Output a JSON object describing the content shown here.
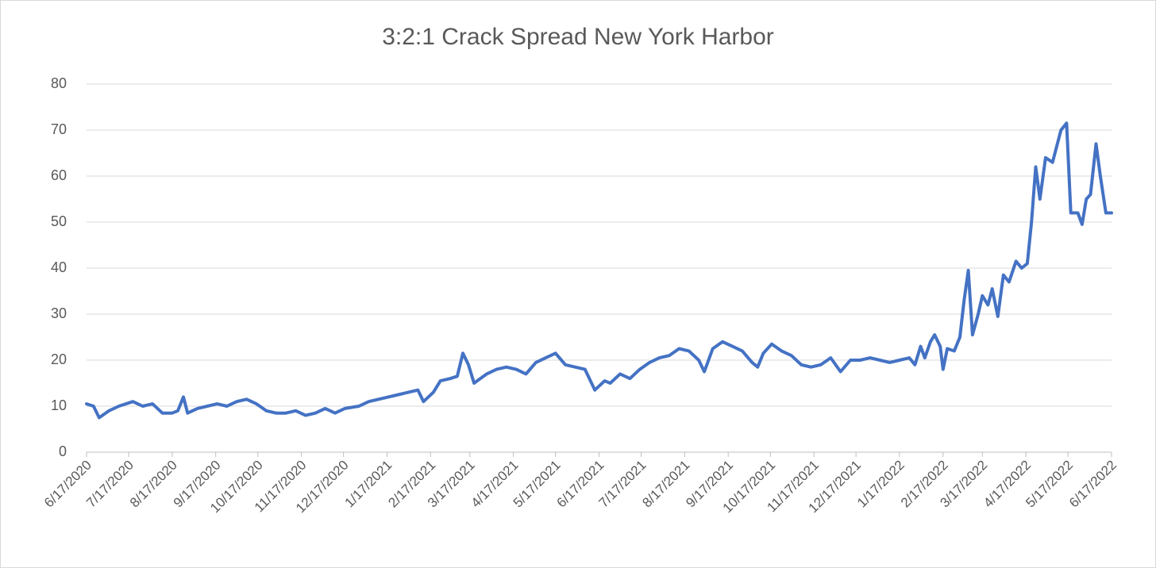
{
  "chart_data": {
    "type": "line",
    "title": "3:2:1 Crack Spread New York Harbor",
    "x": [
      "6/17/2020",
      "6/22/2020",
      "6/26/2020",
      "7/3/2020",
      "7/10/2020",
      "7/20/2020",
      "7/27/2020",
      "8/3/2020",
      "8/10/2020",
      "8/17/2020",
      "8/21/2020",
      "8/25/2020",
      "8/28/2020",
      "9/4/2020",
      "9/11/2020",
      "9/18/2020",
      "9/25/2020",
      "10/2/2020",
      "10/9/2020",
      "10/16/2020",
      "10/23/2020",
      "10/30/2020",
      "11/6/2020",
      "11/13/2020",
      "11/20/2020",
      "11/27/2020",
      "12/4/2020",
      "12/11/2020",
      "12/18/2020",
      "12/28/2020",
      "1/4/2021",
      "1/11/2021",
      "1/18/2021",
      "1/25/2021",
      "2/1/2021",
      "2/8/2021",
      "2/12/2021",
      "2/19/2021",
      "2/24/2021",
      "3/3/2021",
      "3/8/2021",
      "3/12/2021",
      "3/16/2021",
      "3/20/2021",
      "3/29/2021",
      "4/5/2021",
      "4/12/2021",
      "4/19/2021",
      "4/26/2021",
      "5/3/2021",
      "5/10/2021",
      "5/17/2021",
      "5/24/2021",
      "5/31/2021",
      "6/7/2021",
      "6/14/2021",
      "6/21/2021",
      "6/25/2021",
      "7/2/2021",
      "7/9/2021",
      "7/16/2021",
      "7/23/2021",
      "7/30/2021",
      "8/6/2021",
      "8/13/2021",
      "8/20/2021",
      "8/27/2021",
      "8/31/2021",
      "9/6/2021",
      "9/13/2021",
      "9/20/2021",
      "9/27/2021",
      "10/4/2021",
      "10/8/2021",
      "10/12/2021",
      "10/18/2021",
      "10/25/2021",
      "11/1/2021",
      "11/8/2021",
      "11/15/2021",
      "11/22/2021",
      "11/29/2021",
      "12/6/2021",
      "12/13/2021",
      "12/20/2021",
      "12/27/2021",
      "1/3/2022",
      "1/10/2022",
      "1/17/2022",
      "1/24/2022",
      "1/28/2022",
      "2/1/2022",
      "2/4/2022",
      "2/8/2022",
      "2/11/2022",
      "2/15/2022",
      "2/17/2022",
      "2/20/2022",
      "2/25/2022",
      "3/1/2022",
      "3/4/2022",
      "3/7/2022",
      "3/10/2022",
      "3/14/2022",
      "3/17/2022",
      "3/21/2022",
      "3/24/2022",
      "3/28/2022",
      "4/1/2022",
      "4/5/2022",
      "4/10/2022",
      "4/14/2022",
      "4/18/2022",
      "4/21/2022",
      "4/24/2022",
      "4/27/2022",
      "5/1/2022",
      "5/6/2022",
      "5/12/2022",
      "5/16/2022",
      "5/19/2022",
      "5/24/2022",
      "5/27/2022",
      "5/30/2022",
      "6/2/2022",
      "6/6/2022",
      "6/9/2022",
      "6/13/2022",
      "6/17/2022"
    ],
    "series": [
      {
        "name": "3:2:1 Crack Spread New York Harbor",
        "color": "#4472c4",
        "values": [
          10.5,
          10,
          7.5,
          9,
          10,
          11,
          10,
          10.5,
          8.5,
          8.5,
          9,
          12,
          8.5,
          9.5,
          10,
          10.5,
          10,
          11,
          11.5,
          10.5,
          9,
          8.5,
          8.5,
          9,
          8,
          8.5,
          9.5,
          8.5,
          9.5,
          10,
          11,
          11.5,
          12,
          12.5,
          13,
          13.5,
          11,
          13,
          15.5,
          16,
          16.5,
          21.5,
          19,
          15,
          17,
          18,
          18.5,
          18,
          17,
          19.5,
          20.5,
          21.5,
          19,
          18.5,
          18,
          13.5,
          15.5,
          15,
          17,
          16,
          18,
          19.5,
          20.5,
          21,
          22.5,
          22,
          20,
          17.5,
          22.5,
          24,
          23,
          22,
          19.5,
          18.5,
          21.5,
          23.5,
          22,
          21,
          19,
          18.5,
          19,
          20.5,
          17.5,
          20,
          20,
          20.5,
          20,
          19.5,
          20,
          20.5,
          19,
          23,
          20.5,
          24,
          25.5,
          23,
          18,
          22.5,
          22,
          25,
          33,
          39.5,
          25.5,
          30,
          34,
          32,
          35.5,
          29.5,
          38.5,
          37,
          41.5,
          40,
          41,
          50,
          62,
          55,
          64,
          63,
          70,
          71.5,
          52,
          52,
          49.5,
          55,
          56,
          67,
          60,
          52,
          52
        ]
      }
    ],
    "xlim": [
      "6/17/2020",
      "6/17/2022"
    ],
    "xticks": [
      "6/17/2020",
      "7/17/2020",
      "8/17/2020",
      "9/17/2020",
      "10/17/2020",
      "11/17/2020",
      "12/17/2020",
      "1/17/2021",
      "2/17/2021",
      "3/17/2021",
      "4/17/2021",
      "5/17/2021",
      "6/17/2021",
      "7/17/2021",
      "8/17/2021",
      "9/17/2021",
      "10/17/2021",
      "11/17/2021",
      "12/17/2021",
      "1/17/2022",
      "2/17/2022",
      "3/17/2022",
      "4/17/2022",
      "5/17/2022",
      "6/17/2022"
    ],
    "ylim": [
      0,
      80
    ],
    "yticks": [
      0,
      10,
      20,
      30,
      40,
      50,
      60,
      70,
      80
    ],
    "grid": true
  }
}
